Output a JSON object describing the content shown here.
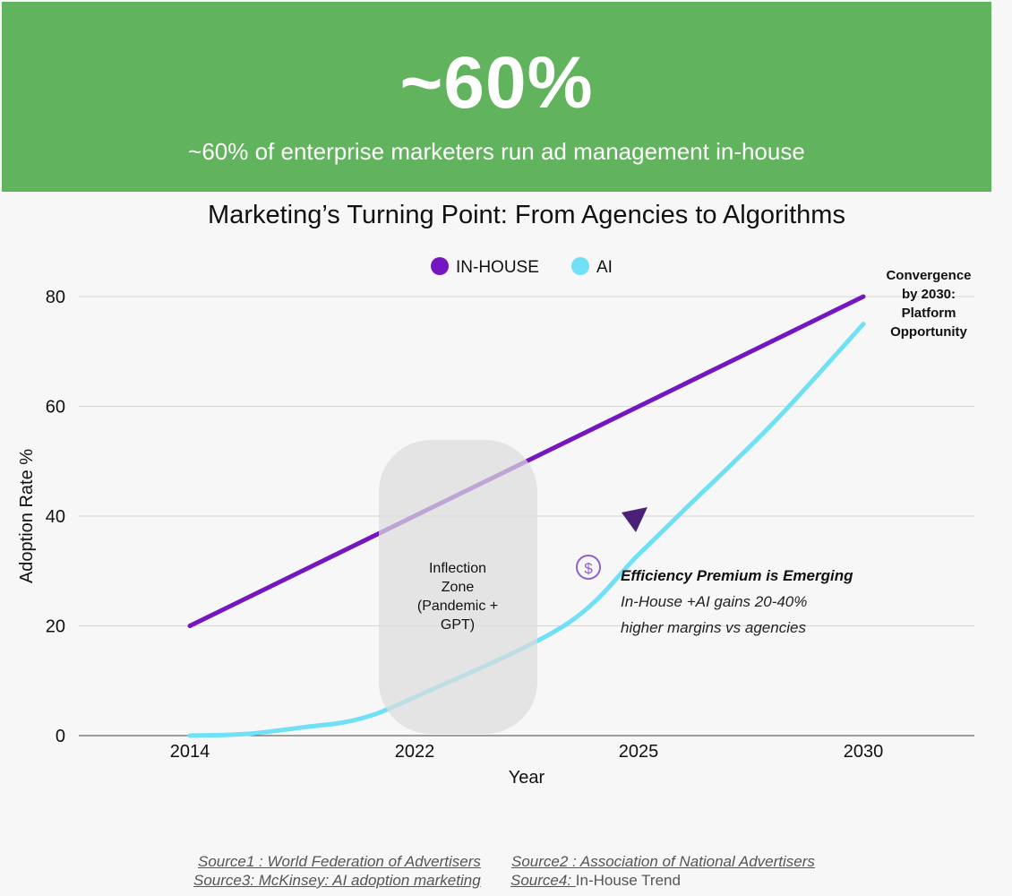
{
  "banner": {
    "stat": "~60%",
    "caption": "~60% of enterprise marketers run ad management in-house",
    "color": "#62b35e"
  },
  "chart_data": {
    "type": "line",
    "title": "Marketing’s Turning Point: From Agencies to Algorithms",
    "xlabel": "Year",
    "ylabel": "Adoption Rate %",
    "categories": [
      "2014",
      "2022",
      "2025",
      "2030"
    ],
    "y_ticks": [
      0,
      20,
      40,
      60,
      80
    ],
    "ylim": [
      0,
      80
    ],
    "grid": true,
    "legend_position": "top-center",
    "series": [
      {
        "name": "IN-HOUSE",
        "color": "#7517c1",
        "points": [
          [
            2014,
            20
          ],
          [
            2030,
            80
          ]
        ]
      },
      {
        "name": "AI",
        "color": "#6fe0f5",
        "points": [
          [
            2014,
            0
          ],
          [
            2016,
            0.3
          ],
          [
            2018,
            1.5
          ],
          [
            2020,
            3
          ],
          [
            2022,
            7
          ],
          [
            2024,
            20
          ],
          [
            2025,
            33
          ],
          [
            2026,
            41
          ],
          [
            2028,
            57
          ],
          [
            2030,
            75
          ]
        ]
      }
    ],
    "annotations": {
      "convergence": [
        "Convergence",
        "by 2030:",
        "Platform",
        "Opportunity"
      ],
      "inflection": [
        "Inflection",
        "Zone",
        "(Pandemic +",
        "GPT)"
      ],
      "efficiency_title": "Efficiency Premium is Emerging",
      "efficiency_lines": [
        "In-House +AI gains 20-40%",
        "higher margins vs agencies"
      ],
      "dollar_icon": "dollar-circle-icon",
      "arrow_icon": "arrow-head-icon",
      "arrow_color": "#4b2178",
      "zone_color": "#dddddd"
    }
  },
  "sources": [
    {
      "label": "Source1 : ",
      "text": "World Federation of Advertisers"
    },
    {
      "label": "Source2 : ",
      "text": "Association of National Advertisers"
    },
    {
      "label": "Source3: ",
      "text": "McKinsey: AI adoption marketing"
    },
    {
      "label": "Source4: ",
      "text": "In-House Trend"
    }
  ]
}
